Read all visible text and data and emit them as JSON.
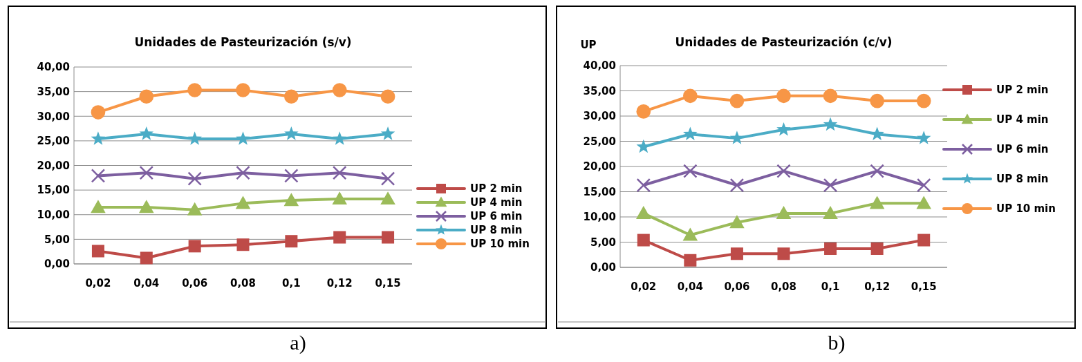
{
  "chart_data": [
    {
      "type": "line",
      "title": "Unidades de Pasteurización (s/v)",
      "categories": [
        "0,02",
        "0,04",
        "0,06",
        "0,08",
        "0,1",
        "0,12",
        "0,15"
      ],
      "ylim": [
        0,
        40
      ],
      "yticks": [
        {
          "value": 0,
          "label": "0,00"
        },
        {
          "value": 5,
          "label": "5,00"
        },
        {
          "value": 10,
          "label": "10,00"
        },
        {
          "value": 15,
          "label": "15,00"
        },
        {
          "value": 20,
          "label": "20,00"
        },
        {
          "value": 25,
          "label": "25,00"
        },
        {
          "value": 30,
          "label": "30,00"
        },
        {
          "value": 35,
          "label": "35,00"
        },
        {
          "value": 40,
          "label": "40,00"
        }
      ],
      "grid": "y",
      "legend": "right",
      "annotations": [
        "a)"
      ],
      "series": [
        {
          "name": "UP 2 min",
          "color": "#be4b48",
          "marker": "square",
          "values": [
            2.6,
            1.2,
            3.6,
            3.9,
            4.6,
            5.4,
            5.4
          ]
        },
        {
          "name": "UP 4 min",
          "color": "#9bbb59",
          "marker": "triangle",
          "values": [
            11.5,
            11.5,
            11.0,
            12.3,
            12.9,
            13.2,
            13.2
          ]
        },
        {
          "name": "UP 6 min",
          "color": "#7d5fa0",
          "marker": "cross",
          "values": [
            17.9,
            18.5,
            17.3,
            18.5,
            17.9,
            18.5,
            17.3
          ]
        },
        {
          "name": "UP 8 min",
          "color": "#4bacc6",
          "marker": "star",
          "values": [
            25.4,
            26.4,
            25.4,
            25.4,
            26.4,
            25.4,
            26.4
          ]
        },
        {
          "name": "UP 10 min",
          "color": "#f79646",
          "marker": "circle",
          "values": [
            30.8,
            34.0,
            35.3,
            35.3,
            34.0,
            35.3,
            34.0
          ]
        }
      ]
    },
    {
      "type": "line",
      "title": "Unidades de Pasteurización (c/v)",
      "ylabel": "UP",
      "categories": [
        "0,02",
        "0,04",
        "0,06",
        "0,08",
        "0,1",
        "0,12",
        "0,15"
      ],
      "ylim": [
        0,
        40
      ],
      "yticks": [
        {
          "value": 0,
          "label": "0,00"
        },
        {
          "value": 5,
          "label": "5,00"
        },
        {
          "value": 10,
          "label": "10,00"
        },
        {
          "value": 15,
          "label": "15,00"
        },
        {
          "value": 20,
          "label": "20,00"
        },
        {
          "value": 25,
          "label": "25,00"
        },
        {
          "value": 30,
          "label": "30,00"
        },
        {
          "value": 35,
          "label": "35,00"
        },
        {
          "value": 40,
          "label": "40,00"
        }
      ],
      "grid": "y",
      "legend": "right",
      "annotations": [
        "b)"
      ],
      "series": [
        {
          "name": "UP 2 min",
          "color": "#be4b48",
          "marker": "square",
          "values": [
            5.4,
            1.4,
            2.7,
            2.7,
            3.7,
            3.7,
            5.4
          ]
        },
        {
          "name": "UP 4 min",
          "color": "#9bbb59",
          "marker": "triangle",
          "values": [
            10.7,
            6.4,
            8.9,
            10.7,
            10.7,
            12.7,
            12.7
          ]
        },
        {
          "name": "UP 6 min",
          "color": "#7d5fa0",
          "marker": "cross",
          "values": [
            16.3,
            19.1,
            16.3,
            19.1,
            16.3,
            19.1,
            16.3
          ]
        },
        {
          "name": "UP 8 min",
          "color": "#4bacc6",
          "marker": "star",
          "values": [
            23.9,
            26.4,
            25.6,
            27.3,
            28.3,
            26.4,
            25.6
          ]
        },
        {
          "name": "UP 10 min",
          "color": "#f79646",
          "marker": "circle",
          "values": [
            30.9,
            34.0,
            33.0,
            34.0,
            34.0,
            33.0,
            33.0
          ]
        }
      ]
    }
  ]
}
